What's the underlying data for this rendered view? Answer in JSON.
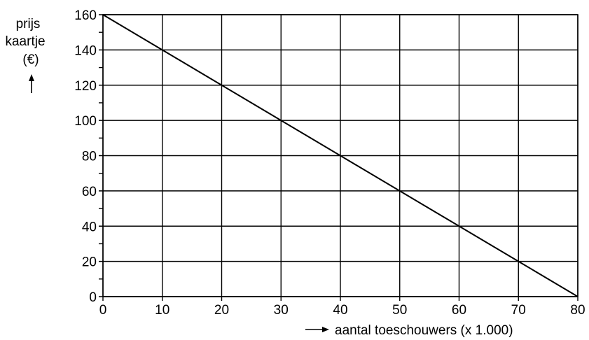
{
  "chart_data": {
    "type": "line",
    "title": "",
    "ylabel_lines": [
      "prijs",
      "kaartje",
      "(€)"
    ],
    "xlabel": "aantal toeschouwers (x 1.000)",
    "x_ticks": [
      0,
      10,
      20,
      30,
      40,
      50,
      60,
      70,
      80
    ],
    "y_ticks": [
      0,
      20,
      40,
      60,
      80,
      100,
      120,
      140,
      160
    ],
    "xlim": [
      0,
      80
    ],
    "ylim": [
      0,
      160
    ],
    "grid": true,
    "series": [
      {
        "x": [
          0,
          10,
          20,
          30,
          40,
          50,
          60,
          70,
          80
        ],
        "y": [
          160,
          140,
          120,
          100,
          80,
          60,
          40,
          20,
          0
        ]
      }
    ],
    "colors": {
      "line": "#000000",
      "grid": "#000000",
      "background": "#ffffff"
    }
  }
}
